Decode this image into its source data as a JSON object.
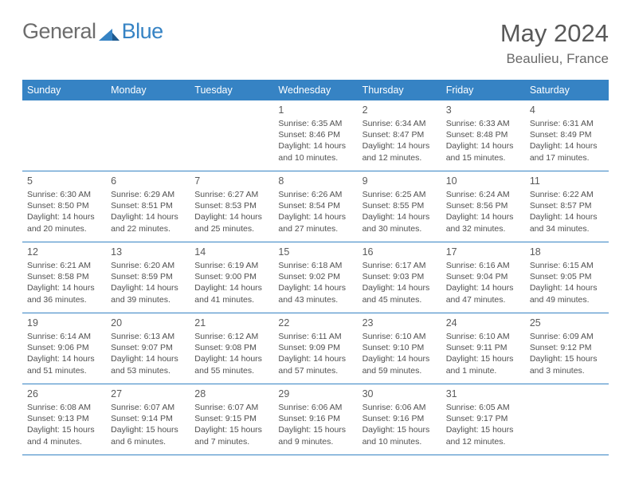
{
  "logo": {
    "part1": "General",
    "part2": "Blue"
  },
  "header": {
    "title": "May 2024",
    "location": "Beaulieu, France"
  },
  "days_of_week": [
    "Sunday",
    "Monday",
    "Tuesday",
    "Wednesday",
    "Thursday",
    "Friday",
    "Saturday"
  ],
  "colors": {
    "header_bg": "#3683c4",
    "border": "#3683c4",
    "text": "#4a4a4a"
  },
  "weeks": [
    [
      {
        "n": "",
        "sr": "",
        "ss": "",
        "dl1": "",
        "dl2": ""
      },
      {
        "n": "",
        "sr": "",
        "ss": "",
        "dl1": "",
        "dl2": ""
      },
      {
        "n": "",
        "sr": "",
        "ss": "",
        "dl1": "",
        "dl2": ""
      },
      {
        "n": "1",
        "sr": "Sunrise: 6:35 AM",
        "ss": "Sunset: 8:46 PM",
        "dl1": "Daylight: 14 hours",
        "dl2": "and 10 minutes."
      },
      {
        "n": "2",
        "sr": "Sunrise: 6:34 AM",
        "ss": "Sunset: 8:47 PM",
        "dl1": "Daylight: 14 hours",
        "dl2": "and 12 minutes."
      },
      {
        "n": "3",
        "sr": "Sunrise: 6:33 AM",
        "ss": "Sunset: 8:48 PM",
        "dl1": "Daylight: 14 hours",
        "dl2": "and 15 minutes."
      },
      {
        "n": "4",
        "sr": "Sunrise: 6:31 AM",
        "ss": "Sunset: 8:49 PM",
        "dl1": "Daylight: 14 hours",
        "dl2": "and 17 minutes."
      }
    ],
    [
      {
        "n": "5",
        "sr": "Sunrise: 6:30 AM",
        "ss": "Sunset: 8:50 PM",
        "dl1": "Daylight: 14 hours",
        "dl2": "and 20 minutes."
      },
      {
        "n": "6",
        "sr": "Sunrise: 6:29 AM",
        "ss": "Sunset: 8:51 PM",
        "dl1": "Daylight: 14 hours",
        "dl2": "and 22 minutes."
      },
      {
        "n": "7",
        "sr": "Sunrise: 6:27 AM",
        "ss": "Sunset: 8:53 PM",
        "dl1": "Daylight: 14 hours",
        "dl2": "and 25 minutes."
      },
      {
        "n": "8",
        "sr": "Sunrise: 6:26 AM",
        "ss": "Sunset: 8:54 PM",
        "dl1": "Daylight: 14 hours",
        "dl2": "and 27 minutes."
      },
      {
        "n": "9",
        "sr": "Sunrise: 6:25 AM",
        "ss": "Sunset: 8:55 PM",
        "dl1": "Daylight: 14 hours",
        "dl2": "and 30 minutes."
      },
      {
        "n": "10",
        "sr": "Sunrise: 6:24 AM",
        "ss": "Sunset: 8:56 PM",
        "dl1": "Daylight: 14 hours",
        "dl2": "and 32 minutes."
      },
      {
        "n": "11",
        "sr": "Sunrise: 6:22 AM",
        "ss": "Sunset: 8:57 PM",
        "dl1": "Daylight: 14 hours",
        "dl2": "and 34 minutes."
      }
    ],
    [
      {
        "n": "12",
        "sr": "Sunrise: 6:21 AM",
        "ss": "Sunset: 8:58 PM",
        "dl1": "Daylight: 14 hours",
        "dl2": "and 36 minutes."
      },
      {
        "n": "13",
        "sr": "Sunrise: 6:20 AM",
        "ss": "Sunset: 8:59 PM",
        "dl1": "Daylight: 14 hours",
        "dl2": "and 39 minutes."
      },
      {
        "n": "14",
        "sr": "Sunrise: 6:19 AM",
        "ss": "Sunset: 9:00 PM",
        "dl1": "Daylight: 14 hours",
        "dl2": "and 41 minutes."
      },
      {
        "n": "15",
        "sr": "Sunrise: 6:18 AM",
        "ss": "Sunset: 9:02 PM",
        "dl1": "Daylight: 14 hours",
        "dl2": "and 43 minutes."
      },
      {
        "n": "16",
        "sr": "Sunrise: 6:17 AM",
        "ss": "Sunset: 9:03 PM",
        "dl1": "Daylight: 14 hours",
        "dl2": "and 45 minutes."
      },
      {
        "n": "17",
        "sr": "Sunrise: 6:16 AM",
        "ss": "Sunset: 9:04 PM",
        "dl1": "Daylight: 14 hours",
        "dl2": "and 47 minutes."
      },
      {
        "n": "18",
        "sr": "Sunrise: 6:15 AM",
        "ss": "Sunset: 9:05 PM",
        "dl1": "Daylight: 14 hours",
        "dl2": "and 49 minutes."
      }
    ],
    [
      {
        "n": "19",
        "sr": "Sunrise: 6:14 AM",
        "ss": "Sunset: 9:06 PM",
        "dl1": "Daylight: 14 hours",
        "dl2": "and 51 minutes."
      },
      {
        "n": "20",
        "sr": "Sunrise: 6:13 AM",
        "ss": "Sunset: 9:07 PM",
        "dl1": "Daylight: 14 hours",
        "dl2": "and 53 minutes."
      },
      {
        "n": "21",
        "sr": "Sunrise: 6:12 AM",
        "ss": "Sunset: 9:08 PM",
        "dl1": "Daylight: 14 hours",
        "dl2": "and 55 minutes."
      },
      {
        "n": "22",
        "sr": "Sunrise: 6:11 AM",
        "ss": "Sunset: 9:09 PM",
        "dl1": "Daylight: 14 hours",
        "dl2": "and 57 minutes."
      },
      {
        "n": "23",
        "sr": "Sunrise: 6:10 AM",
        "ss": "Sunset: 9:10 PM",
        "dl1": "Daylight: 14 hours",
        "dl2": "and 59 minutes."
      },
      {
        "n": "24",
        "sr": "Sunrise: 6:10 AM",
        "ss": "Sunset: 9:11 PM",
        "dl1": "Daylight: 15 hours",
        "dl2": "and 1 minute."
      },
      {
        "n": "25",
        "sr": "Sunrise: 6:09 AM",
        "ss": "Sunset: 9:12 PM",
        "dl1": "Daylight: 15 hours",
        "dl2": "and 3 minutes."
      }
    ],
    [
      {
        "n": "26",
        "sr": "Sunrise: 6:08 AM",
        "ss": "Sunset: 9:13 PM",
        "dl1": "Daylight: 15 hours",
        "dl2": "and 4 minutes."
      },
      {
        "n": "27",
        "sr": "Sunrise: 6:07 AM",
        "ss": "Sunset: 9:14 PM",
        "dl1": "Daylight: 15 hours",
        "dl2": "and 6 minutes."
      },
      {
        "n": "28",
        "sr": "Sunrise: 6:07 AM",
        "ss": "Sunset: 9:15 PM",
        "dl1": "Daylight: 15 hours",
        "dl2": "and 7 minutes."
      },
      {
        "n": "29",
        "sr": "Sunrise: 6:06 AM",
        "ss": "Sunset: 9:16 PM",
        "dl1": "Daylight: 15 hours",
        "dl2": "and 9 minutes."
      },
      {
        "n": "30",
        "sr": "Sunrise: 6:06 AM",
        "ss": "Sunset: 9:16 PM",
        "dl1": "Daylight: 15 hours",
        "dl2": "and 10 minutes."
      },
      {
        "n": "31",
        "sr": "Sunrise: 6:05 AM",
        "ss": "Sunset: 9:17 PM",
        "dl1": "Daylight: 15 hours",
        "dl2": "and 12 minutes."
      },
      {
        "n": "",
        "sr": "",
        "ss": "",
        "dl1": "",
        "dl2": ""
      }
    ]
  ]
}
